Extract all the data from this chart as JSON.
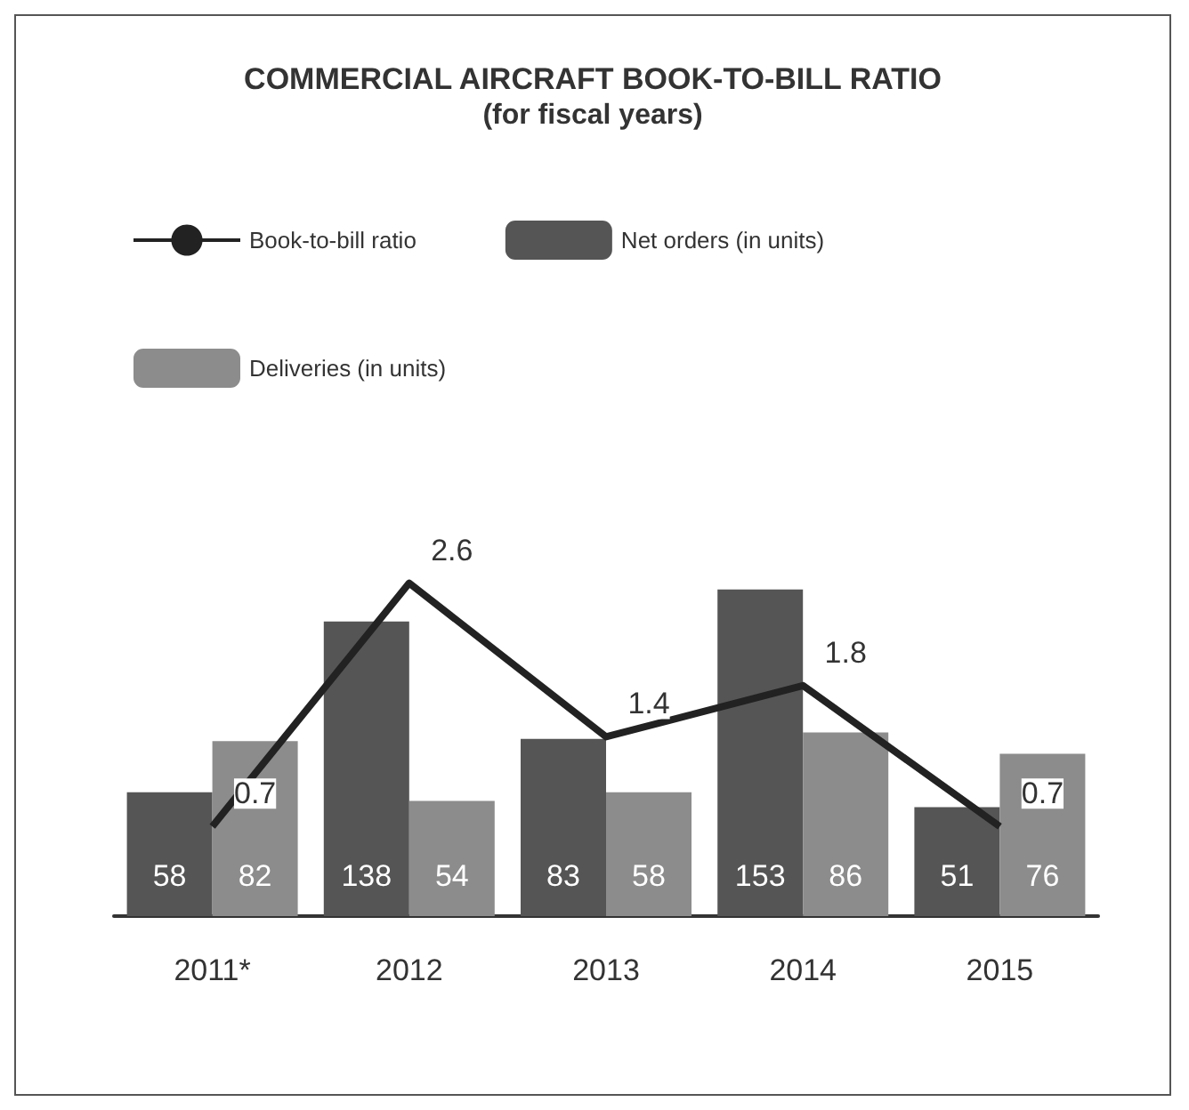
{
  "chart_data": {
    "type": "bar",
    "title": "COMMERCIAL AIRCRAFT BOOK-TO-BILL RATIO",
    "subtitle": "(for fiscal years)",
    "categories": [
      "2011*",
      "2012",
      "2013",
      "2014",
      "2015"
    ],
    "series": [
      {
        "name": "Book-to-bill ratio",
        "type": "line",
        "axis": "y2",
        "color": "#222222",
        "values": [
          0.7,
          2.6,
          1.4,
          1.8,
          0.7
        ]
      },
      {
        "name": "Net orders (in units)",
        "color": "#555555",
        "values": [
          58,
          138,
          83,
          153,
          51
        ]
      },
      {
        "name": "Deliveries (in units)",
        "color": "#8c8c8c",
        "values": [
          82,
          54,
          58,
          86,
          76
        ]
      }
    ],
    "tick_labels": "x",
    "data_labels": true,
    "legend": "top",
    "marker": "none"
  }
}
